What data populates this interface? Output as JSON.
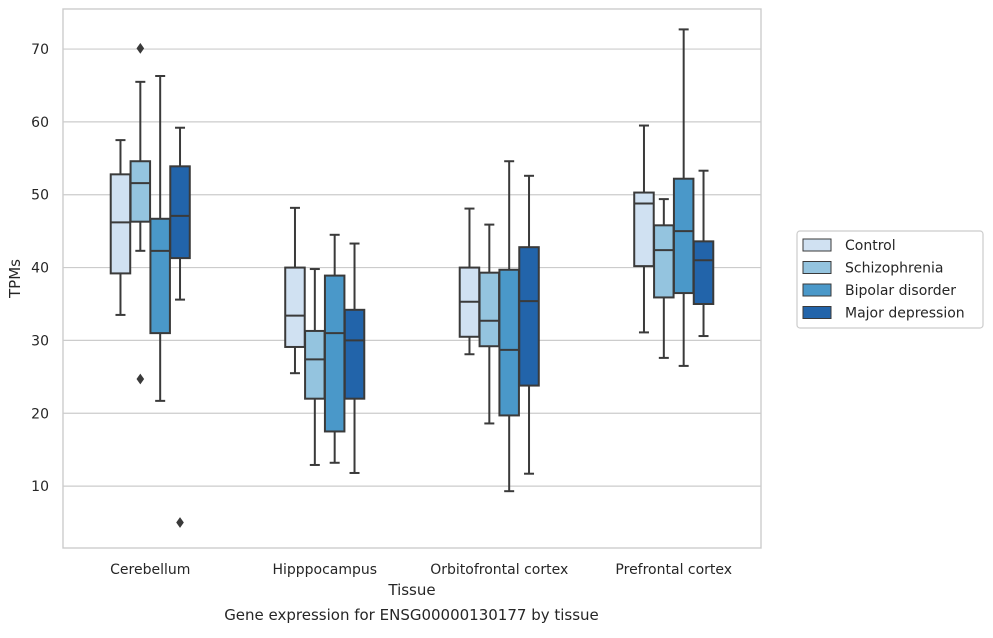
{
  "caption": "Gene expression for ENSG00000130177 by tissue",
  "chart_data": {
    "type": "box",
    "xlabel": "Tissue",
    "ylabel": "TPMs",
    "ylim": [
      1.5,
      75.5
    ],
    "yticks": [
      10,
      20,
      30,
      40,
      50,
      60,
      70
    ],
    "grid": "horizontal",
    "legend_position": "right",
    "categories": [
      "Cerebellum",
      "Hipppocampus",
      "Orbitofrontal cortex",
      "Prefrontal cortex"
    ],
    "series": [
      {
        "name": "Control",
        "color": "#d0e1f2",
        "boxes": [
          {
            "whislo": 33.5,
            "q1": 39.2,
            "med": 46.2,
            "q3": 52.8,
            "whishi": 57.5,
            "fliers": []
          },
          {
            "whislo": 25.5,
            "q1": 29.1,
            "med": 33.4,
            "q3": 40.0,
            "whishi": 48.2,
            "fliers": []
          },
          {
            "whislo": 28.1,
            "q1": 30.5,
            "med": 35.3,
            "q3": 40.0,
            "whishi": 48.1,
            "fliers": []
          },
          {
            "whislo": 31.1,
            "q1": 40.2,
            "med": 48.8,
            "q3": 50.3,
            "whishi": 59.5,
            "fliers": []
          }
        ]
      },
      {
        "name": "Schizophrenia",
        "color": "#94c4df",
        "boxes": [
          {
            "whislo": 42.3,
            "q1": 46.3,
            "med": 51.6,
            "q3": 54.6,
            "whishi": 65.5,
            "fliers": [
              70.1,
              24.7
            ]
          },
          {
            "whislo": 12.9,
            "q1": 22.0,
            "med": 27.4,
            "q3": 31.3,
            "whishi": 39.8,
            "fliers": []
          },
          {
            "whislo": 18.6,
            "q1": 29.2,
            "med": 32.7,
            "q3": 39.3,
            "whishi": 45.9,
            "fliers": []
          },
          {
            "whislo": 27.6,
            "q1": 35.9,
            "med": 42.4,
            "q3": 45.8,
            "whishi": 49.4,
            "fliers": []
          }
        ]
      },
      {
        "name": "Bipolar disorder",
        "color": "#4a98c9",
        "boxes": [
          {
            "whislo": 21.7,
            "q1": 31.0,
            "med": 42.3,
            "q3": 46.7,
            "whishi": 66.3,
            "fliers": []
          },
          {
            "whislo": 13.2,
            "q1": 17.5,
            "med": 31.0,
            "q3": 38.9,
            "whishi": 44.5,
            "fliers": []
          },
          {
            "whislo": 9.3,
            "q1": 19.7,
            "med": 28.7,
            "q3": 39.7,
            "whishi": 54.6,
            "fliers": []
          },
          {
            "whislo": 26.5,
            "q1": 36.5,
            "med": 45.0,
            "q3": 52.2,
            "whishi": 72.7,
            "fliers": []
          }
        ]
      },
      {
        "name": "Major depression",
        "color": "#2264aa",
        "boxes": [
          {
            "whislo": 35.6,
            "q1": 41.3,
            "med": 47.1,
            "q3": 53.9,
            "whishi": 59.2,
            "fliers": [
              5.0
            ]
          },
          {
            "whislo": 11.8,
            "q1": 22.0,
            "med": 30.0,
            "q3": 34.2,
            "whishi": 43.3,
            "fliers": []
          },
          {
            "whislo": 11.7,
            "q1": 23.8,
            "med": 35.4,
            "q3": 42.8,
            "whishi": 52.6,
            "fliers": []
          },
          {
            "whislo": 30.6,
            "q1": 35.0,
            "med": 41.0,
            "q3": 43.6,
            "whishi": 53.3,
            "fliers": []
          }
        ]
      }
    ]
  }
}
